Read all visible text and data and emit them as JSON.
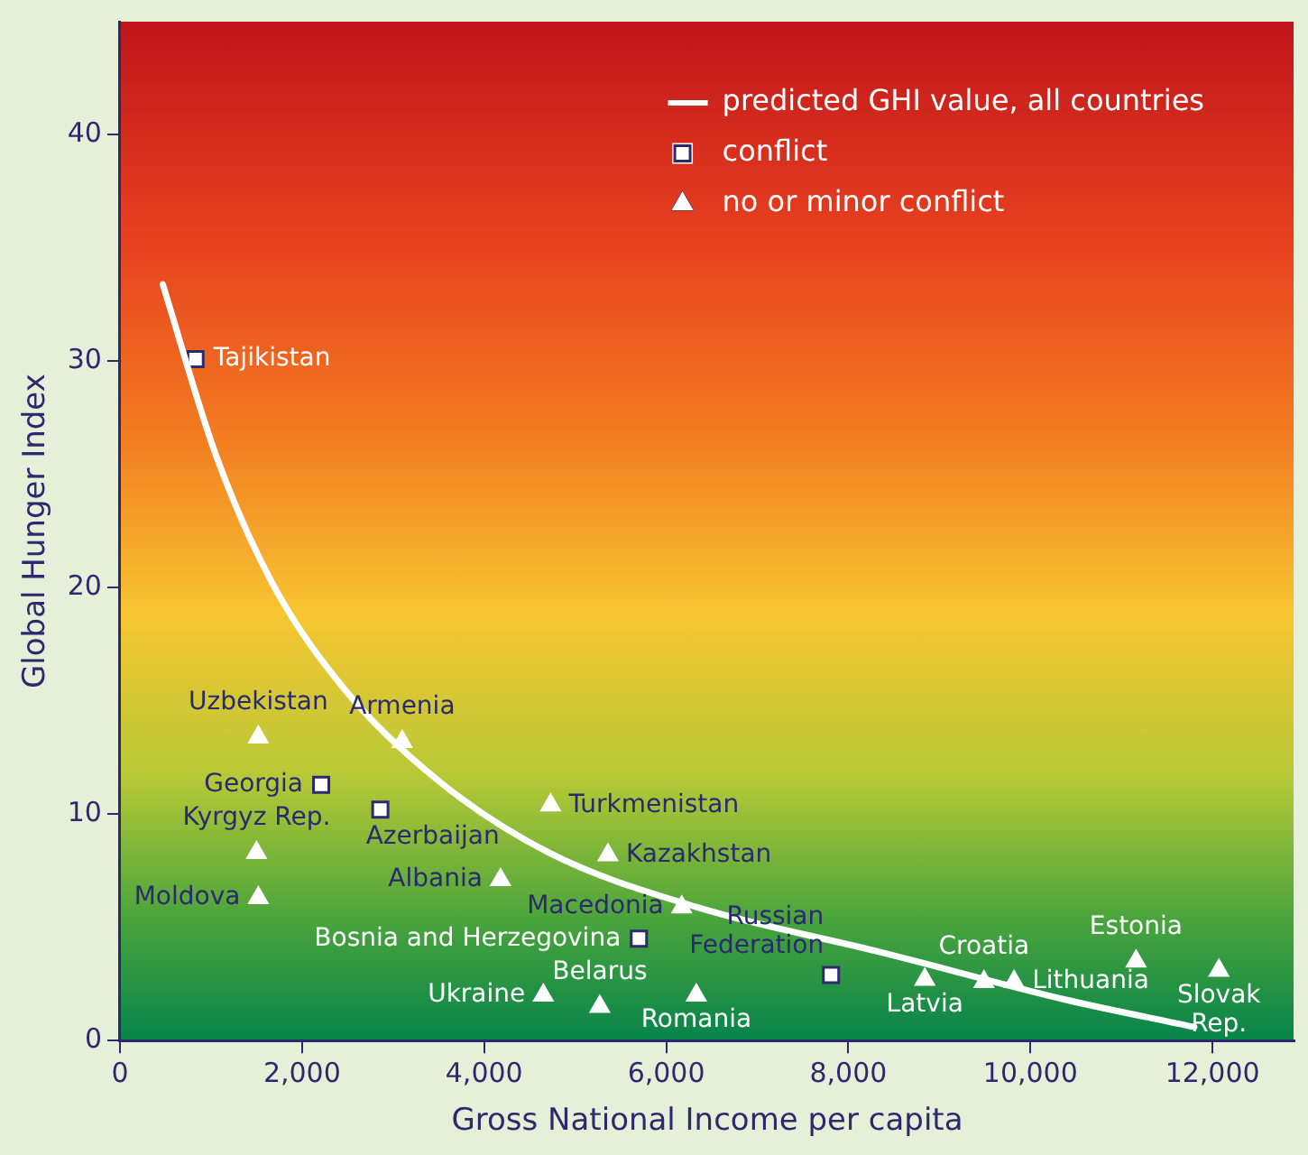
{
  "chart_data": {
    "type": "scatter",
    "xlabel": "Gross National Income per capita",
    "ylabel": "Global Hunger Index",
    "xlim": [
      0,
      12900
    ],
    "ylim": [
      0,
      45
    ],
    "xticks": [
      0,
      {
        "value": 2000,
        "label": "2,000"
      },
      {
        "value": 4000,
        "label": "4,000"
      },
      {
        "value": 6000,
        "label": "6,000"
      },
      {
        "value": 8000,
        "label": "8,000"
      },
      {
        "value": 10000,
        "label": "10,000"
      },
      {
        "value": 12000,
        "label": "12,000"
      }
    ],
    "yticks": [
      0,
      10,
      20,
      30,
      40
    ],
    "grid": false,
    "legend": "top right",
    "series": [
      {
        "name": "predicted GHI value, all countries",
        "type": "line",
        "color": "#ffffff",
        "marker": "none",
        "x": [
          470,
          1050,
          1660,
          2470,
          3490,
          4710,
          6330,
          8360,
          10390,
          11800
        ],
        "values": [
          33.4,
          25.9,
          20.3,
          15.5,
          11.5,
          8.3,
          5.9,
          3.9,
          1.8,
          0.6
        ]
      },
      {
        "name": "conflict",
        "color": "#ffffff",
        "marker": "square",
        "x": [
          830,
          2210,
          2860,
          5700,
          7810
        ],
        "values": [
          30.1,
          11.3,
          10.2,
          4.5,
          2.9
        ]
      },
      {
        "name": "no or minor conflict",
        "color": "#ffffff",
        "marker": "triangle",
        "x": [
          1520,
          3100,
          1500,
          4730,
          5360,
          4180,
          1520,
          6170,
          4650,
          5270,
          6330,
          8840,
          9490,
          9820,
          11160,
          12070
        ],
        "values": [
          13.4,
          13.2,
          8.3,
          10.4,
          8.2,
          7.1,
          6.3,
          5.9,
          2.0,
          1.5,
          2.0,
          2.7,
          2.6,
          2.6,
          3.5,
          3.1
        ]
      }
    ],
    "annotations": [
      {
        "text": "Tajikistan",
        "x": 830,
        "y": 30.1
      },
      {
        "text": "Georgia",
        "x": 2210,
        "y": 11.3
      },
      {
        "text": "Azerbaijan",
        "x": 2860,
        "y": 10.2
      },
      {
        "text": "Bosnia and Herzegovina",
        "x": 5700,
        "y": 4.5
      },
      {
        "text": "Russian\nFederation",
        "x": 7810,
        "y": 2.9
      },
      {
        "text": "Uzbekistan",
        "x": 1520,
        "y": 13.4
      },
      {
        "text": "Armenia",
        "x": 3100,
        "y": 13.2
      },
      {
        "text": "Kyrgyz Rep.",
        "x": 1500,
        "y": 8.3
      },
      {
        "text": "Turkmenistan",
        "x": 4730,
        "y": 10.4
      },
      {
        "text": "Kazakhstan",
        "x": 5360,
        "y": 8.2
      },
      {
        "text": "Albania",
        "x": 4180,
        "y": 7.1
      },
      {
        "text": "Moldova",
        "x": 1520,
        "y": 6.3
      },
      {
        "text": "Macedonia",
        "x": 6170,
        "y": 5.9
      },
      {
        "text": "Ukraine",
        "x": 4650,
        "y": 2.0
      },
      {
        "text": "Belarus",
        "x": 5270,
        "y": 1.5
      },
      {
        "text": "Romania",
        "x": 6330,
        "y": 2.0
      },
      {
        "text": "Latvia",
        "x": 8840,
        "y": 2.7
      },
      {
        "text": "Croatia",
        "x": 9490,
        "y": 2.6
      },
      {
        "text": "Lithuania",
        "x": 9820,
        "y": 2.6
      },
      {
        "text": "Estonia",
        "x": 11160,
        "y": 3.5
      },
      {
        "text": "Slovak\nRep.",
        "x": 12070,
        "y": 3.1
      }
    ]
  }
}
